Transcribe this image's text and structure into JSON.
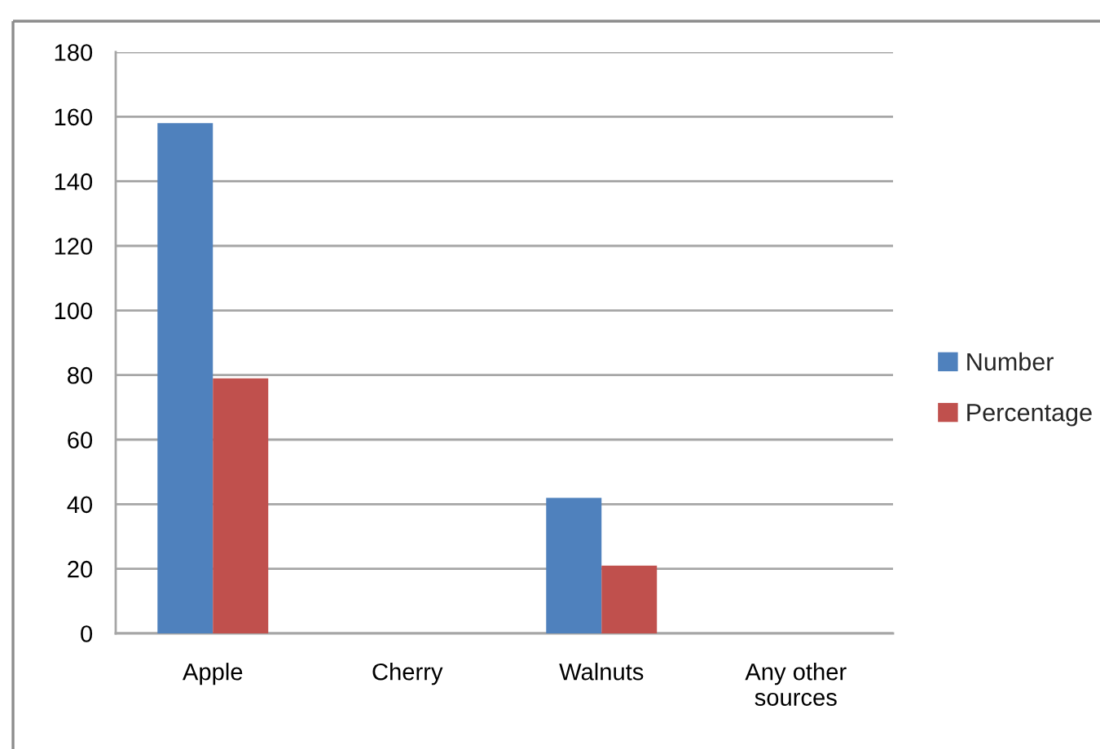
{
  "chart_data": {
    "type": "bar",
    "categories": [
      "Apple",
      "Cherry",
      "Walnuts",
      "Any other\nsources"
    ],
    "series": [
      {
        "name": "Number",
        "color": "#4f81bd",
        "values": [
          158,
          0,
          42,
          0
        ]
      },
      {
        "name": "Percentage",
        "color": "#c0504d",
        "values": [
          79,
          0,
          21,
          0
        ]
      }
    ],
    "ylim": [
      0,
      180
    ],
    "yticks": [
      0,
      20,
      40,
      60,
      80,
      100,
      120,
      140,
      160,
      180
    ],
    "grid": "y",
    "legend": "right"
  }
}
